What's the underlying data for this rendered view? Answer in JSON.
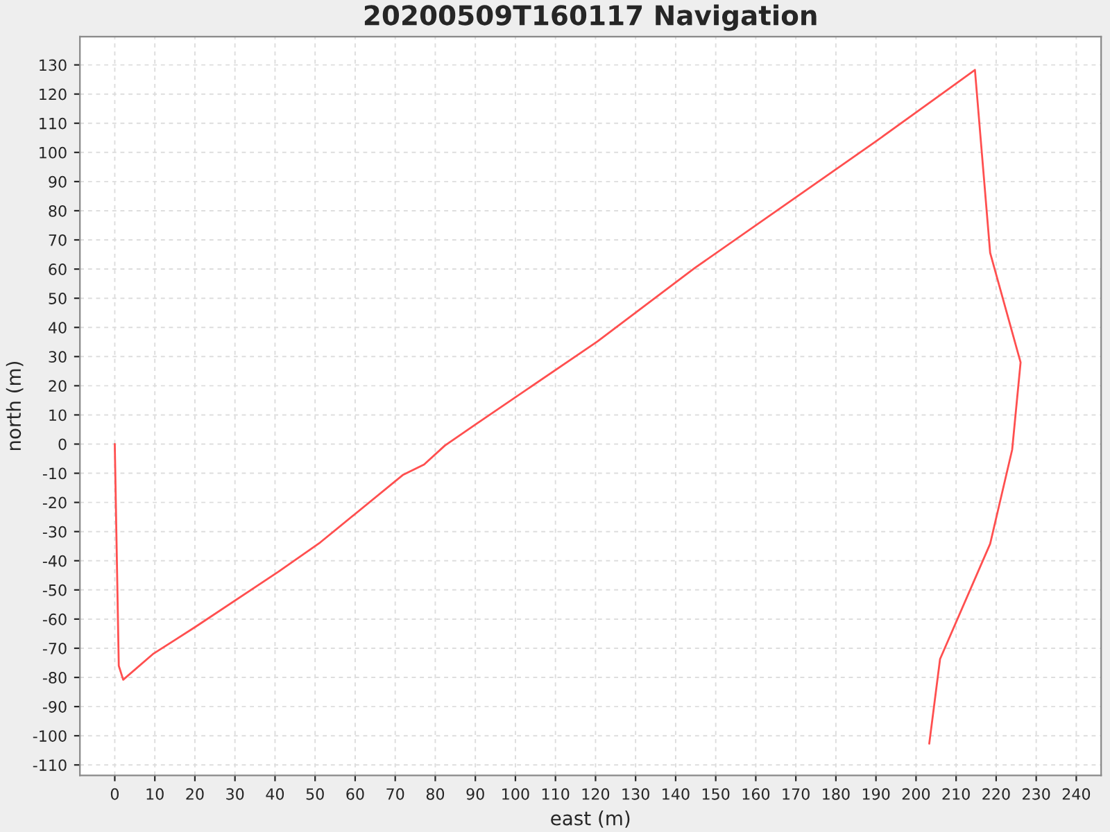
{
  "chart_data": {
    "type": "line",
    "title": "20200509T160117 Navigation",
    "xlabel": "east (m)",
    "ylabel": "north (m)",
    "series": [
      {
        "color": "#ff4f4f",
        "x": [
          0,
          1,
          2.1,
          9.7,
          20.1,
          40.9,
          51.3,
          72,
          77.2,
          82.4,
          90,
          120.5,
          144.8,
          189.8,
          207.1,
          214.7,
          218.5,
          226.1,
          224,
          218.5,
          206,
          203.3
        ],
        "values": [
          0,
          -76,
          -80.8,
          -71.8,
          -62.7,
          -43.7,
          -33.7,
          -10.5,
          -7,
          -0.5,
          6.7,
          35.2,
          60.4,
          103.6,
          120.7,
          128.3,
          65.6,
          28,
          -1.9,
          -34.2,
          -73.7,
          -102.7
        ]
      }
    ],
    "xlim": [
      -8.7,
      246.2
    ],
    "ylim": [
      -113.6,
      139.7
    ],
    "xticks": [
      0,
      10,
      20,
      30,
      40,
      50,
      60,
      70,
      80,
      90,
      100,
      110,
      120,
      130,
      140,
      150,
      160,
      170,
      180,
      190,
      200,
      210,
      220,
      230,
      240
    ],
    "yticks": [
      -110,
      -100,
      -90,
      -80,
      -70,
      -60,
      -50,
      -40,
      -30,
      -20,
      -10,
      0,
      10,
      20,
      30,
      40,
      50,
      60,
      70,
      80,
      90,
      100,
      110,
      120,
      130
    ],
    "grid": true,
    "marker": "none",
    "line_style": "solid",
    "legend": false
  }
}
